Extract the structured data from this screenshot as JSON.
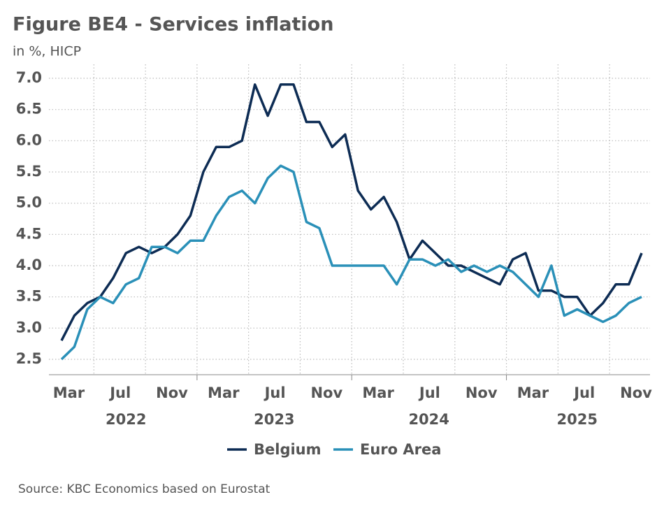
{
  "chart_data": {
    "type": "line",
    "title": "Figure BE4 - Services inflation",
    "subtitle": "in %, HICP",
    "source": "Source: KBC Economics based on Eurostat",
    "categories": [
      null,
      "Mar",
      null,
      null,
      null,
      "Jul",
      null,
      null,
      null,
      "Nov",
      null,
      null,
      null,
      "Mar",
      null,
      null,
      null,
      "Jul",
      null,
      null,
      null,
      "Nov",
      null,
      null,
      null,
      "Mar",
      null,
      null,
      null,
      "Jul",
      null,
      null,
      null,
      "Nov",
      null,
      null,
      null,
      "Mar",
      null,
      null,
      null,
      "Jul",
      null,
      null,
      null,
      "Nov"
    ],
    "x_groups": [
      {
        "label": "2022",
        "size": 11
      },
      {
        "label": "2023",
        "size": 12
      },
      {
        "label": "2024",
        "size": 12
      },
      {
        "label": "2025",
        "size": 11
      }
    ],
    "series": [
      {
        "name": "Belgium",
        "color": "#0d2c54",
        "values": [
          2.8,
          3.2,
          3.4,
          3.5,
          3.8,
          4.2,
          4.3,
          4.2,
          4.3,
          4.5,
          4.8,
          5.5,
          5.9,
          5.9,
          6.0,
          6.9,
          6.4,
          6.9,
          6.9,
          6.3,
          6.3,
          5.9,
          6.1,
          5.2,
          4.9,
          5.1,
          4.7,
          4.1,
          4.4,
          4.2,
          4.0,
          4.0,
          3.9,
          3.8,
          3.7,
          4.1,
          4.2,
          3.6,
          3.6,
          3.5,
          3.5,
          3.2,
          3.4,
          3.7,
          3.7,
          4.2
        ]
      },
      {
        "name": "Euro Area",
        "color": "#2a90b8",
        "values": [
          2.5,
          2.7,
          3.3,
          3.5,
          3.4,
          3.7,
          3.8,
          4.3,
          4.3,
          4.2,
          4.4,
          4.4,
          4.8,
          5.1,
          5.2,
          5.0,
          5.4,
          5.6,
          5.5,
          4.7,
          4.6,
          4.0,
          4.0,
          4.0,
          4.0,
          4.0,
          3.7,
          4.1,
          4.1,
          4.0,
          4.1,
          3.9,
          4.0,
          3.9,
          4.0,
          3.9,
          3.7,
          3.5,
          4.0,
          3.2,
          3.3,
          3.2,
          3.1,
          3.2,
          3.4,
          3.5
        ]
      }
    ],
    "ylim": [
      2.5,
      7.0
    ],
    "yticks": [
      {
        "value": 2.5,
        "label": "2.5"
      },
      {
        "value": 3,
        "label": "3.0"
      },
      {
        "value": 3.5,
        "label": "3.5"
      },
      {
        "value": 4,
        "label": "4.0"
      },
      {
        "value": 4.5,
        "label": "4.5"
      },
      {
        "value": 5,
        "label": "5.0"
      },
      {
        "value": 5.5,
        "label": "5.5"
      },
      {
        "value": 6,
        "label": "6.0"
      },
      {
        "value": 6.5,
        "label": "6.5"
      },
      {
        "value": 7,
        "label": "7.0"
      }
    ],
    "grid": true,
    "legend": "bottom"
  }
}
